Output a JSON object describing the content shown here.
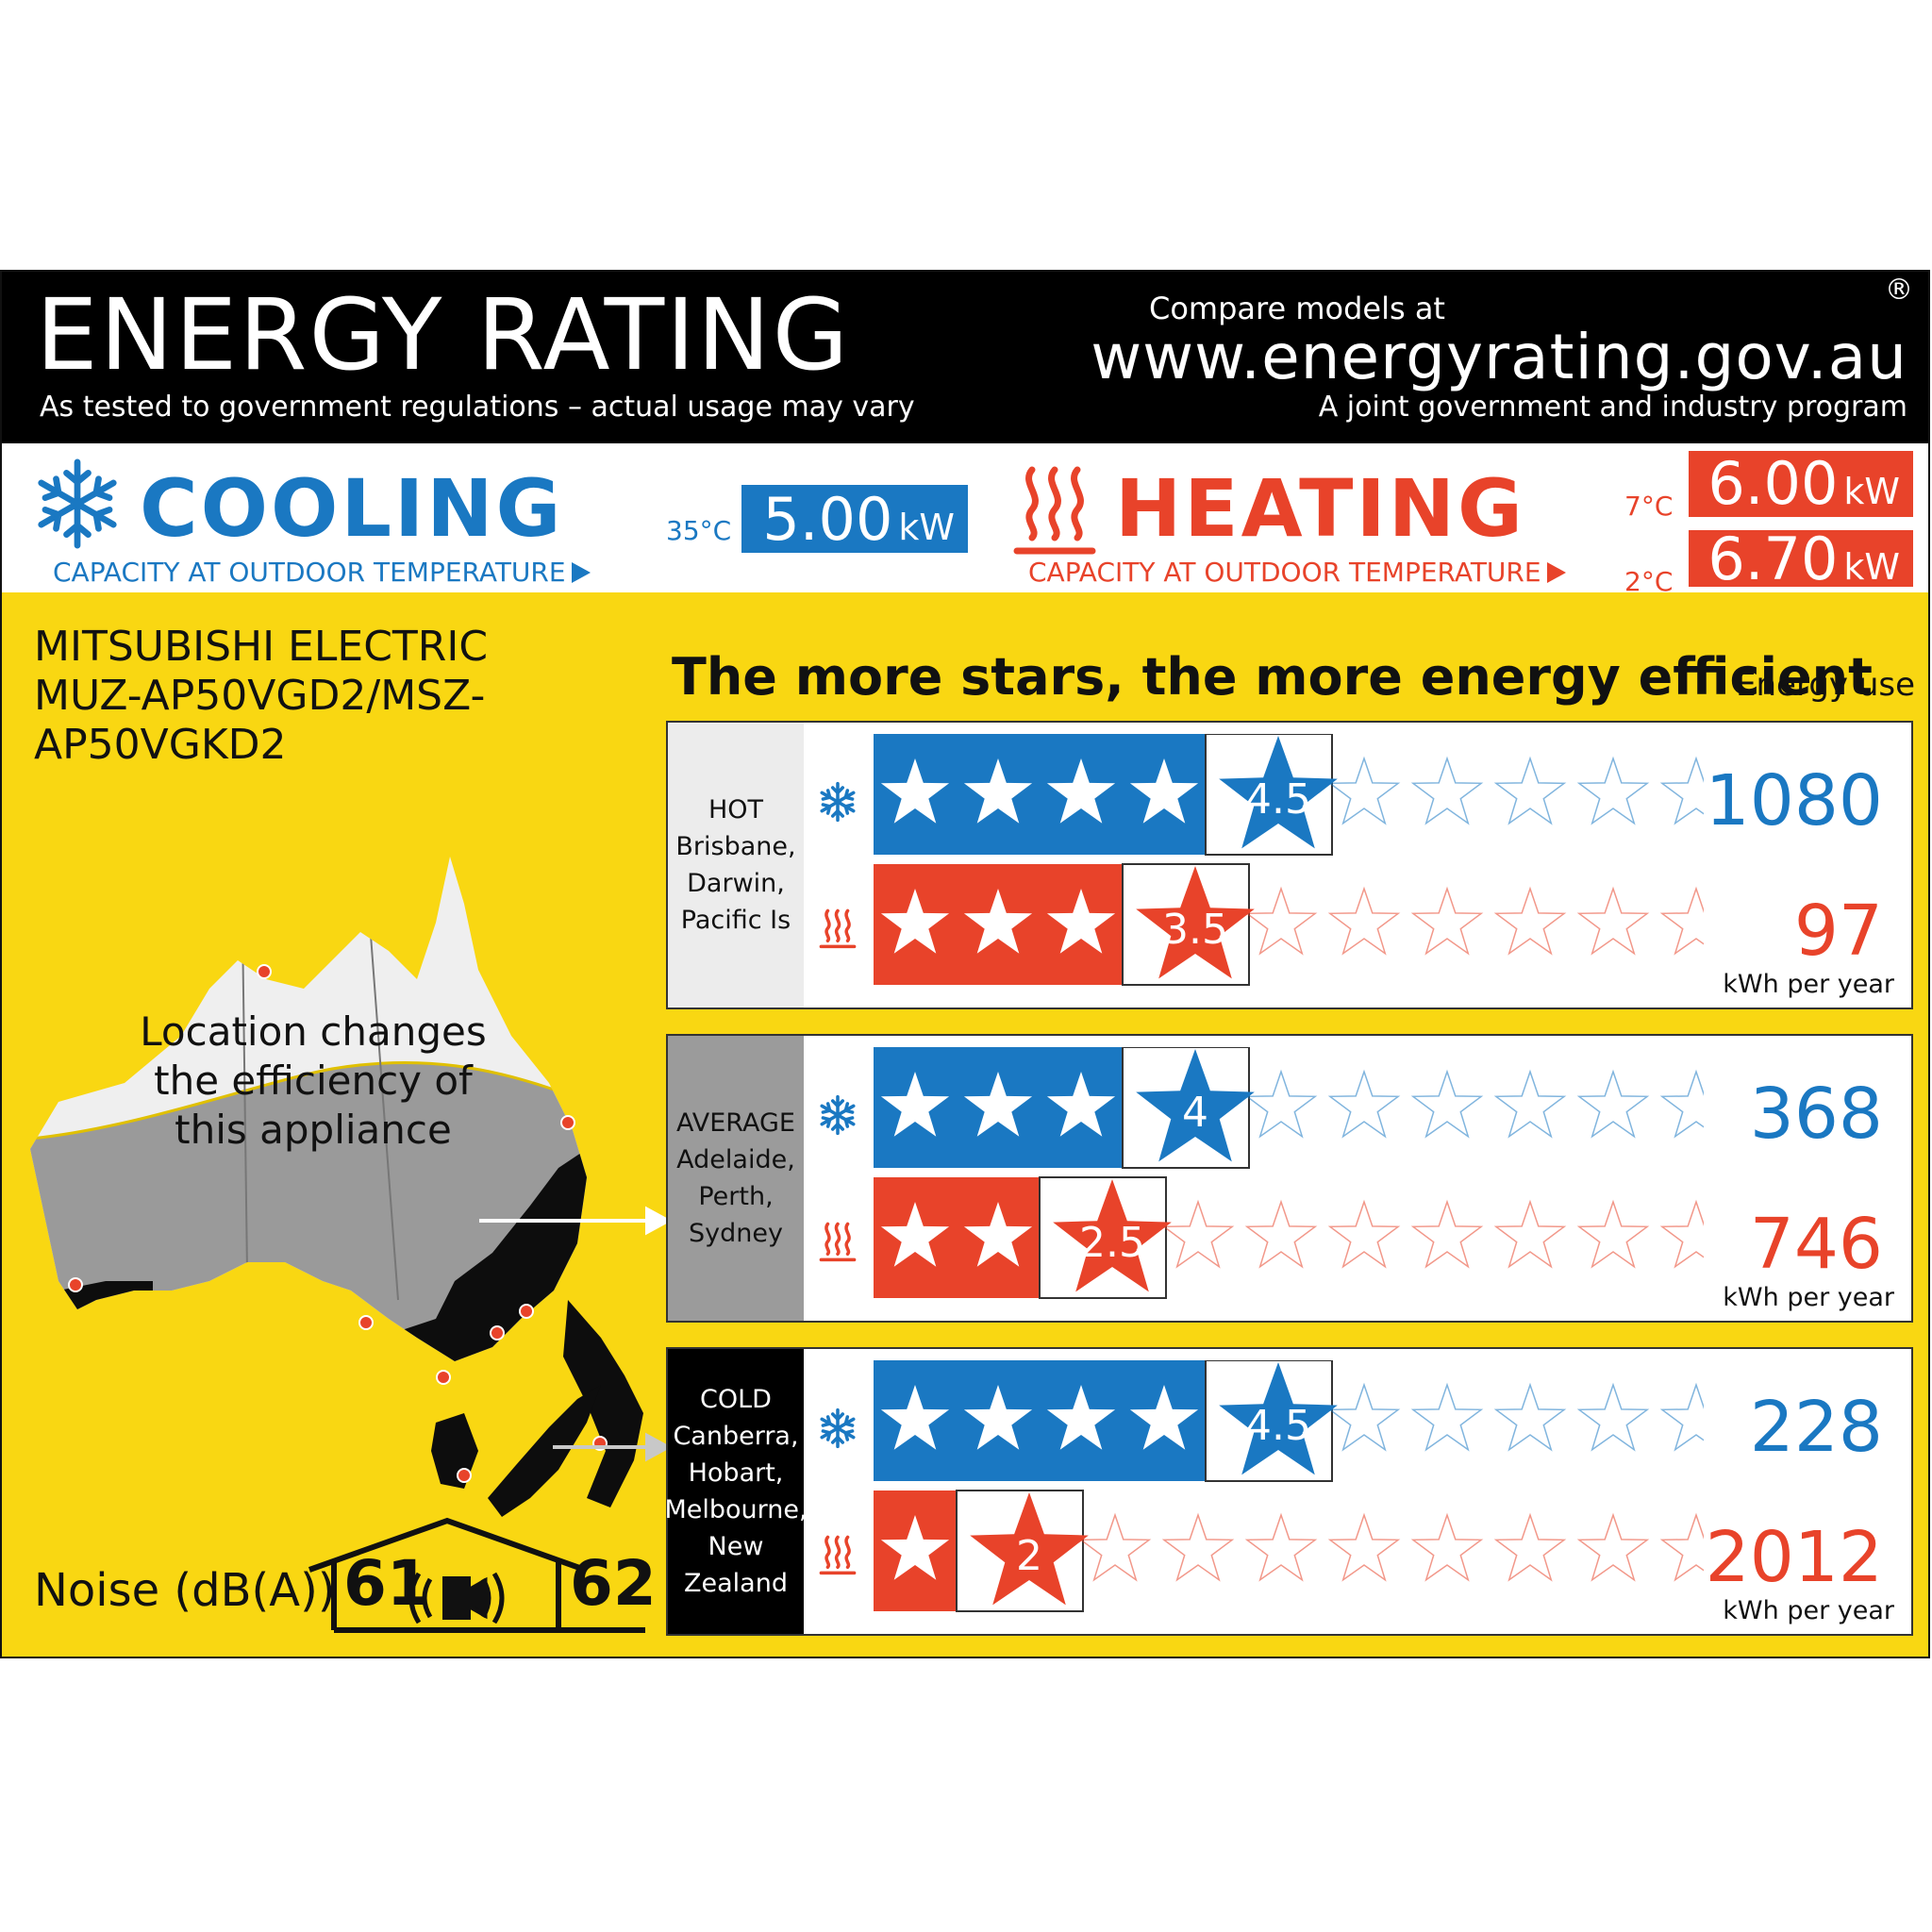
{
  "header": {
    "title": "ENERGY RATING",
    "subtitle_left": "As tested to government regulations – actual usage may vary",
    "compare_text": "Compare models at",
    "website": "www.energyrating.gov.au",
    "registered_mark": "®",
    "subtitle_right": "A joint government and industry program"
  },
  "cooling": {
    "title": "COOLING",
    "subtitle": "CAPACITY AT OUTDOOR TEMPERATURE",
    "temp": "35°C",
    "capacity_value": "5.00",
    "capacity_unit": "kW"
  },
  "heating": {
    "title": "HEATING",
    "subtitle": "CAPACITY AT OUTDOOR TEMPERATURE",
    "temp_1": "7°C",
    "capacity_1_value": "6.00",
    "capacity_1_unit": "kW",
    "temp_2": "2°C",
    "capacity_2_value": "6.70",
    "capacity_2_unit": "kW"
  },
  "model": {
    "brand": "MITSUBISHI ELECTRIC",
    "model_line_1": "MUZ-AP50VGD2/MSZ-",
    "model_line_2": "AP50VGKD2"
  },
  "tagline": "The more stars, the more energy efficient",
  "energy_use_label": "Energy use",
  "map_caption": [
    "Location changes",
    "the efficiency of",
    "this appliance"
  ],
  "zones": [
    {
      "id": "hot",
      "lines": [
        "HOT",
        "Brisbane,",
        "Darwin,",
        "Pacific Is"
      ],
      "cooling_stars": "4.5",
      "heating_stars": "3.5",
      "cooling_kwh": "1080",
      "heating_kwh": "97",
      "unit": "kWh per year"
    },
    {
      "id": "avg",
      "lines": [
        "AVERAGE",
        "Adelaide,",
        "Perth,",
        "Sydney"
      ],
      "cooling_stars": "4",
      "heating_stars": "2.5",
      "cooling_kwh": "368",
      "heating_kwh": "746",
      "unit": "kWh per year"
    },
    {
      "id": "cold",
      "lines": [
        "COLD",
        "Canberra,",
        "Hobart,",
        "Melbourne,",
        "New Zealand"
      ],
      "cooling_stars": "4.5",
      "heating_stars": "2",
      "cooling_kwh": "228",
      "heating_kwh": "2012",
      "unit": "kWh per year"
    }
  ],
  "star_scale_max": 10,
  "noise": {
    "label": "Noise (dB(A))",
    "indoor": "61",
    "outdoor": "62"
  },
  "colors": {
    "cooling_blue": "#1a78c2",
    "heating_red": "#e8432a",
    "label_yellow": "#f9d712",
    "header_black": "#000000"
  },
  "icons": {
    "cooling": "snowflake-icon",
    "heating": "heat-waves-icon",
    "noise": "speaker-icon"
  }
}
